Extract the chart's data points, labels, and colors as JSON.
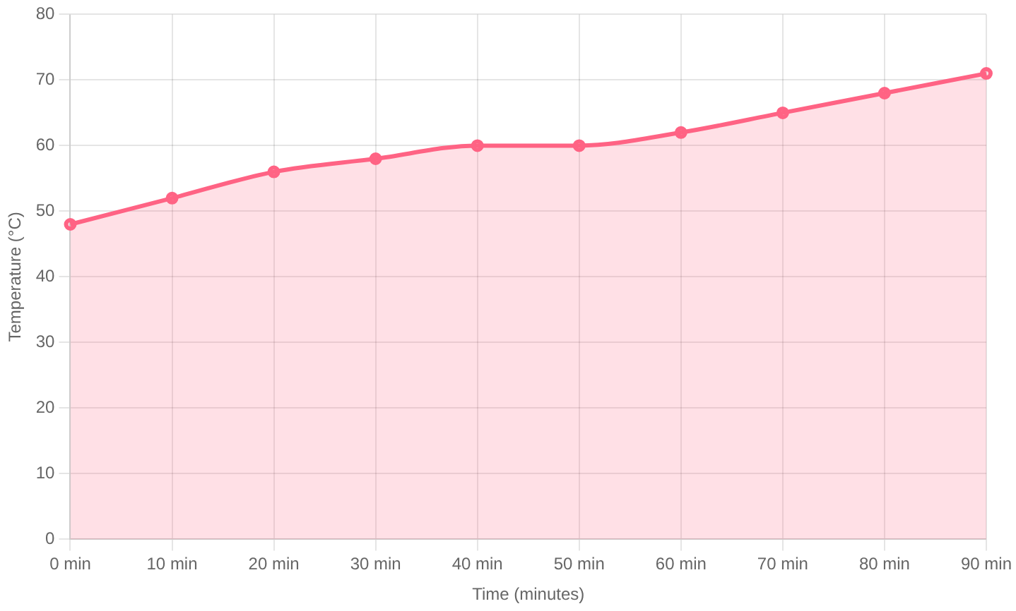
{
  "chart_data": {
    "type": "area",
    "xlabel": "Time (minutes)",
    "ylabel": "Temperature (°C)",
    "categories": [
      "0 min",
      "10 min",
      "20 min",
      "30 min",
      "40 min",
      "50 min",
      "60 min",
      "70 min",
      "80 min",
      "90 min"
    ],
    "series": [
      {
        "color": "#ff6384",
        "values": [
          48,
          52,
          56,
          58,
          60,
          60,
          62,
          65,
          68,
          71
        ]
      }
    ],
    "ylim": [
      0,
      80
    ],
    "yticks": [
      0,
      10,
      20,
      30,
      40,
      50,
      60,
      70,
      80
    ],
    "grid": true,
    "legend": false,
    "marker": "circle",
    "line_style": "solid"
  }
}
